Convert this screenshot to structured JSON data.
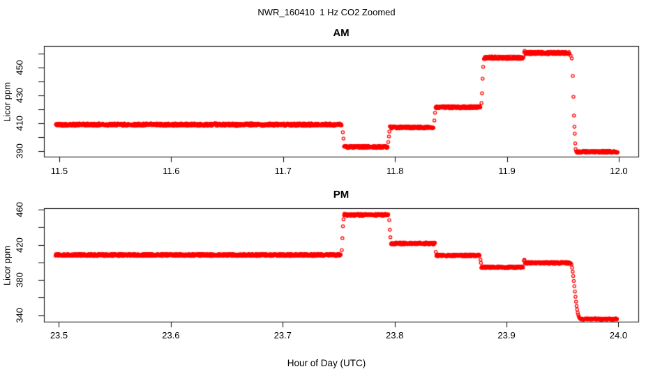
{
  "title": "NWR_160410  1 Hz CO2 Zoomed",
  "xlabel": "Hour of Day (UTC)",
  "point_color": "#ff0000",
  "axis_color": "#000000",
  "chart_data": [
    {
      "type": "scatter",
      "panel": "AM",
      "title": "AM",
      "ylabel": "Licor ppm",
      "marker": "open-circle",
      "xlim": [
        11.4863,
        12.0175
      ],
      "ylim": [
        386.0,
        465.5
      ],
      "x_ticks": [
        {
          "v": 11.5,
          "label": "11.5"
        },
        {
          "v": 11.6,
          "label": "11.6"
        },
        {
          "v": 11.7,
          "label": "11.7"
        },
        {
          "v": 11.8,
          "label": "11.8"
        },
        {
          "v": 11.9,
          "label": "11.9"
        },
        {
          "v": 12.0,
          "label": "12.0"
        }
      ],
      "y_ticks": [
        {
          "v": 390,
          "label": "390"
        },
        {
          "v": 400,
          "label": ""
        },
        {
          "v": 410,
          "label": "410"
        },
        {
          "v": 420,
          "label": ""
        },
        {
          "v": 430,
          "label": "430"
        },
        {
          "v": 440,
          "label": ""
        },
        {
          "v": 450,
          "label": "450"
        },
        {
          "v": 460,
          "label": ""
        }
      ],
      "segments": [
        {
          "kind": "flat",
          "x0": 11.497,
          "x1": 11.7525,
          "v": 409.0,
          "noise": 0.9
        },
        {
          "kind": "pts",
          "pts": [
            [
              11.7534,
              403.5
            ],
            [
              11.754,
              399.0
            ]
          ]
        },
        {
          "kind": "flat",
          "x0": 11.7545,
          "x1": 11.7935,
          "v": 393.0,
          "noise": 0.8
        },
        {
          "kind": "pts",
          "pts": [
            [
              11.794,
              396.5
            ],
            [
              11.7946,
              400.5
            ],
            [
              11.795,
              404.0
            ]
          ]
        },
        {
          "kind": "flat",
          "x0": 11.7955,
          "x1": 11.8345,
          "v": 407.0,
          "noise": 0.8
        },
        {
          "kind": "pts",
          "pts": [
            [
              11.8352,
              412.0
            ],
            [
              11.8358,
              417.5
            ]
          ]
        },
        {
          "kind": "flat",
          "x0": 11.8363,
          "x1": 11.8765,
          "v": 421.5,
          "noise": 0.8
        },
        {
          "kind": "pts",
          "pts": [
            [
              11.8773,
              424.5
            ],
            [
              11.8778,
              431.5
            ],
            [
              11.8783,
              442.0
            ],
            [
              11.8788,
              450.5
            ]
          ]
        },
        {
          "kind": "flat",
          "x0": 11.8795,
          "x1": 11.915,
          "v": 457.0,
          "noise": 0.9
        },
        {
          "kind": "pts",
          "pts": [
            [
              11.9155,
              461.0
            ],
            [
              11.916,
              462.0
            ]
          ]
        },
        {
          "kind": "flat",
          "x0": 11.9165,
          "x1": 11.956,
          "v": 460.5,
          "noise": 0.9
        },
        {
          "kind": "pts",
          "pts": [
            [
              11.957,
              458.5
            ],
            [
              11.958,
              456.5
            ],
            [
              11.9589,
              444.0
            ],
            [
              11.9595,
              429.0
            ],
            [
              11.96,
              415.5
            ],
            [
              11.9604,
              407.5
            ],
            [
              11.9607,
              402.5
            ],
            [
              11.9611,
              395.5
            ],
            [
              11.9614,
              391.5
            ]
          ]
        },
        {
          "kind": "flat",
          "x0": 11.962,
          "x1": 11.999,
          "v": 389.5,
          "noise": 0.7
        }
      ]
    },
    {
      "type": "scatter",
      "panel": "PM",
      "title": "PM",
      "ylabel": "Licor ppm",
      "marker": "open-circle",
      "xlim": [
        23.4866,
        24.0178
      ],
      "ylim": [
        332.7,
        461.6
      ],
      "x_ticks": [
        {
          "v": 23.5,
          "label": "23.5"
        },
        {
          "v": 23.6,
          "label": "23.6"
        },
        {
          "v": 23.7,
          "label": "23.7"
        },
        {
          "v": 23.8,
          "label": "23.8"
        },
        {
          "v": 23.9,
          "label": "23.9"
        },
        {
          "v": 24.0,
          "label": "24.0"
        }
      ],
      "y_ticks": [
        {
          "v": 340,
          "label": "340"
        },
        {
          "v": 360,
          "label": ""
        },
        {
          "v": 380,
          "label": "380"
        },
        {
          "v": 400,
          "label": ""
        },
        {
          "v": 420,
          "label": "420"
        },
        {
          "v": 440,
          "label": ""
        },
        {
          "v": 460,
          "label": "460"
        }
      ],
      "segments": [
        {
          "kind": "flat",
          "x0": 23.497,
          "x1": 23.752,
          "v": 408.5,
          "noise": 1.2
        },
        {
          "kind": "pts",
          "pts": [
            [
              23.7528,
              414.0
            ],
            [
              23.7533,
              427.5
            ],
            [
              23.7538,
              441.0
            ],
            [
              23.7543,
              449.0
            ]
          ]
        },
        {
          "kind": "flat",
          "x0": 23.7548,
          "x1": 23.7945,
          "v": 454.0,
          "noise": 1.2
        },
        {
          "kind": "pts",
          "pts": [
            [
              23.7952,
              448.0
            ],
            [
              23.7957,
              437.0
            ],
            [
              23.7962,
              428.5
            ]
          ]
        },
        {
          "kind": "flat",
          "x0": 23.7968,
          "x1": 23.836,
          "v": 421.5,
          "noise": 1.1
        },
        {
          "kind": "pts",
          "pts": [
            [
              23.8367,
              412.0
            ]
          ]
        },
        {
          "kind": "flat",
          "x0": 23.8373,
          "x1": 23.876,
          "v": 408.0,
          "noise": 1.1
        },
        {
          "kind": "pts",
          "pts": [
            [
              23.8767,
              403.0
            ],
            [
              23.8771,
              399.5
            ]
          ]
        },
        {
          "kind": "flat",
          "x0": 23.8775,
          "x1": 23.915,
          "v": 394.5,
          "noise": 1.0
        },
        {
          "kind": "pts",
          "pts": [
            [
              23.9155,
              402.0
            ],
            [
              23.916,
              403.0
            ]
          ]
        },
        {
          "kind": "flat",
          "x0": 23.9165,
          "x1": 23.9575,
          "v": 399.5,
          "noise": 1.1
        },
        {
          "kind": "pts",
          "pts": [
            [
              23.958,
              397.5
            ],
            [
              23.9586,
              394.0
            ],
            [
              23.9591,
              389.5
            ],
            [
              23.9596,
              384.5
            ],
            [
              23.9601,
              379.0
            ],
            [
              23.9606,
              373.0
            ],
            [
              23.9611,
              367.0
            ],
            [
              23.9616,
              361.0
            ],
            [
              23.9621,
              355.5
            ],
            [
              23.9626,
              350.5
            ],
            [
              23.9631,
              346.5
            ],
            [
              23.9636,
              343.0
            ],
            [
              23.9641,
              340.5
            ],
            [
              23.9646,
              338.5
            ],
            [
              23.9651,
              337.0
            ],
            [
              23.9657,
              336.2
            ]
          ]
        },
        {
          "kind": "flat",
          "x0": 23.966,
          "x1": 23.999,
          "v": 335.8,
          "noise": 0.7
        }
      ]
    }
  ]
}
